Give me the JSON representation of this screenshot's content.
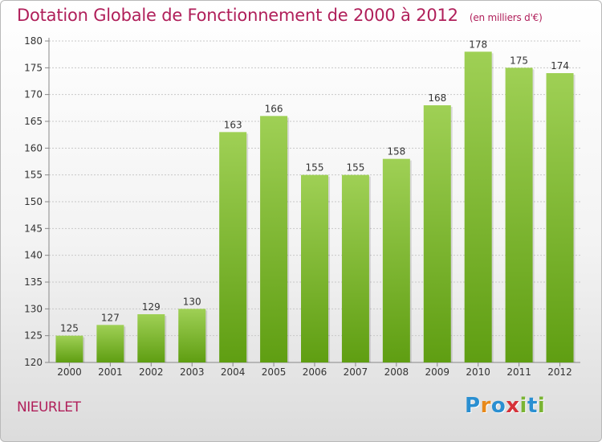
{
  "title": "Dotation Globale de Fonctionnement de 2000 à 2012",
  "unit_note": "(en milliers d'€)",
  "commune": "NIEURLET",
  "brand": {
    "letters": [
      {
        "char": "P",
        "color": "#2a8fd1"
      },
      {
        "char": "r",
        "color": "#e8891a"
      },
      {
        "char": "o",
        "color": "#2a8fd1"
      },
      {
        "char": "x",
        "color": "#d6323a"
      },
      {
        "char": "i",
        "color": "#7ab433"
      },
      {
        "char": "t",
        "color": "#2a8fd1"
      },
      {
        "char": "i",
        "color": "#7ab433"
      }
    ]
  },
  "colors": {
    "bar_top": "#9fd055",
    "bar_bottom": "#5f9e12",
    "title": "#b01f5a",
    "grid": "#c8c8c8",
    "text": "#333333"
  },
  "chart_data": {
    "type": "bar",
    "categories": [
      "2000",
      "2001",
      "2002",
      "2003",
      "2004",
      "2005",
      "2006",
      "2007",
      "2008",
      "2009",
      "2010",
      "2011",
      "2012"
    ],
    "values": [
      125,
      127,
      129,
      130,
      163,
      166,
      155,
      155,
      158,
      168,
      178,
      175,
      174
    ],
    "ylim": [
      120,
      180
    ],
    "yticks": [
      120,
      125,
      130,
      135,
      140,
      145,
      150,
      155,
      160,
      165,
      170,
      175,
      180
    ],
    "grid": true,
    "xlabel": "",
    "ylabel": ""
  }
}
